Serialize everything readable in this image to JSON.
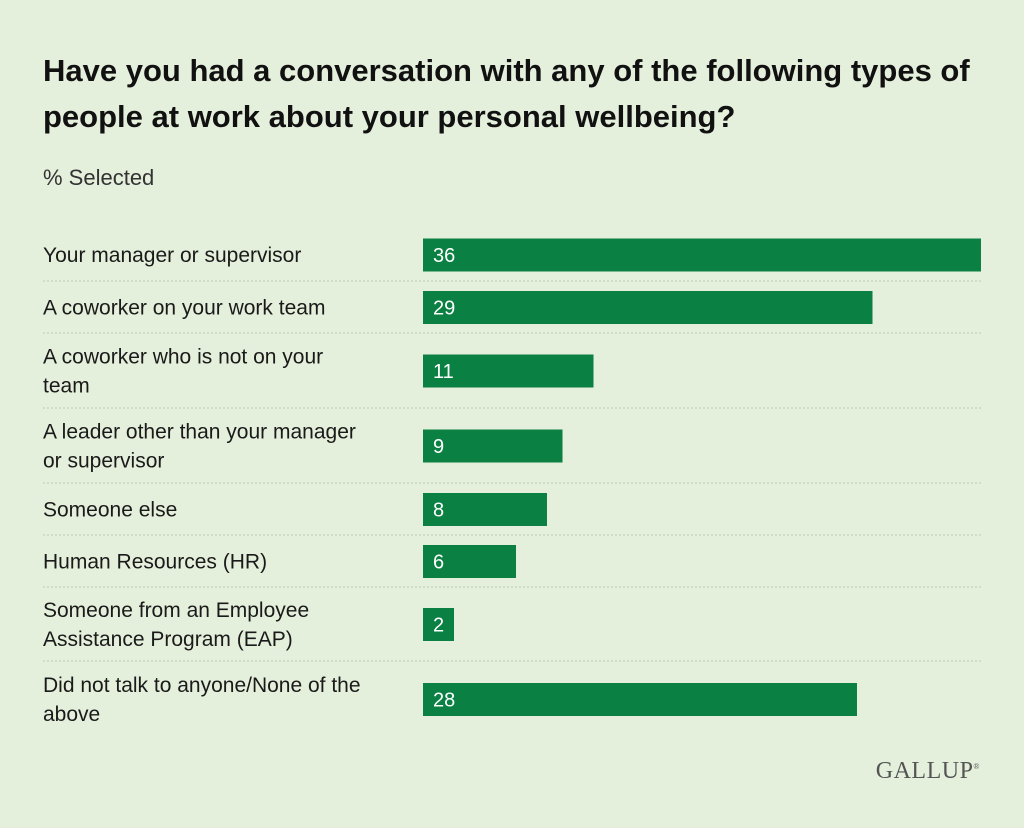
{
  "chart_data": {
    "type": "bar",
    "orientation": "horizontal",
    "title": "Have you had a conversation with any of the following types of people at work about your personal wellbeing?",
    "subtitle": "% Selected",
    "categories": [
      "Your manager or supervisor",
      "A coworker on your work team",
      "A coworker who is not on your team",
      "A leader other than your manager or supervisor",
      "Someone else",
      "Human Resources (HR)",
      "Someone from an Employee Assistance Program (EAP)",
      "Did not talk to anyone/None of the above"
    ],
    "category_lines": [
      [
        "Your manager or supervisor"
      ],
      [
        "A coworker on your work team"
      ],
      [
        "A coworker who is not on your",
        "team"
      ],
      [
        "A leader other than your manager",
        "or supervisor"
      ],
      [
        "Someone else"
      ],
      [
        "Human Resources (HR)"
      ],
      [
        "Someone from an Employee",
        "Assistance Program (EAP)"
      ],
      [
        "Did not talk to anyone/None of the",
        "above"
      ]
    ],
    "values": [
      36,
      29,
      11,
      9,
      8,
      6,
      2,
      28
    ],
    "bar_color": "#0a8043",
    "label_color": "#ffffff",
    "divider_style": "dotted",
    "grid": false
  },
  "brand": {
    "name": "GALLUP",
    "mark": "®"
  }
}
